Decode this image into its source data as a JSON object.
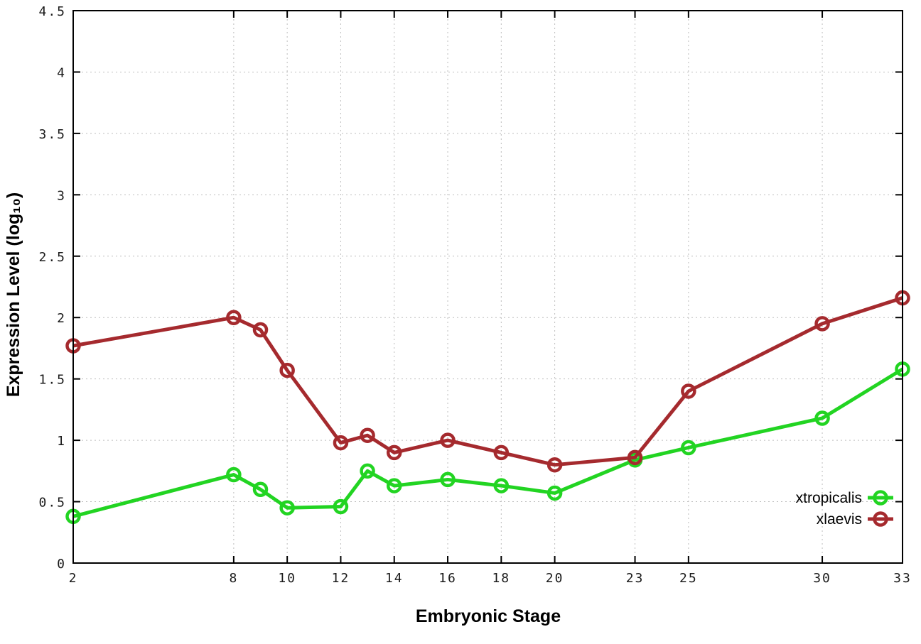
{
  "colors": {
    "background": "#ffffff",
    "plot_border": "#000000",
    "grid": "#bdbdbd",
    "tick_text": "#1a1a1a",
    "xtropicalis": "#22d422",
    "xlaevis": "#a52a2e"
  },
  "chart_data": {
    "type": "line",
    "title": "",
    "xlabel": "Embryonic Stage",
    "ylabel": "Expression Level (log₁₀)",
    "xlim": [
      2,
      33
    ],
    "ylim": [
      0,
      4.5
    ],
    "grid": true,
    "grid_style": "dotted",
    "legend_position": "inside-bottom-right",
    "x": [
      2,
      8,
      9,
      10,
      12,
      13,
      14,
      16,
      18,
      20,
      23,
      25,
      30,
      33
    ],
    "xticks": [
      2,
      8,
      10,
      12,
      14,
      16,
      18,
      20,
      23,
      25,
      30,
      33
    ],
    "xtick_labels": [
      "2",
      "8",
      "10",
      "12",
      "14",
      "16",
      "18",
      "20",
      "23",
      "25",
      "30",
      "33"
    ],
    "yticks": [
      0,
      0.5,
      1,
      1.5,
      2,
      2.5,
      3,
      3.5,
      4,
      4.5
    ],
    "ytick_labels": [
      "0",
      "0.5",
      "1",
      "1.5",
      "2",
      "2.5",
      "3",
      "3.5",
      "4",
      "4.5"
    ],
    "series": [
      {
        "name": "xtropicalis",
        "color": "#22d422",
        "marker": "open-circle",
        "values": [
          0.38,
          0.72,
          0.6,
          0.45,
          0.46,
          0.75,
          0.63,
          0.68,
          0.63,
          0.57,
          0.84,
          0.94,
          1.18,
          1.58
        ]
      },
      {
        "name": "xlaevis",
        "color": "#a52a2e",
        "marker": "open-circle",
        "values": [
          1.77,
          2.0,
          1.9,
          1.57,
          0.98,
          1.04,
          0.9,
          1.0,
          0.9,
          0.8,
          0.86,
          1.4,
          1.95,
          2.16
        ]
      }
    ]
  }
}
